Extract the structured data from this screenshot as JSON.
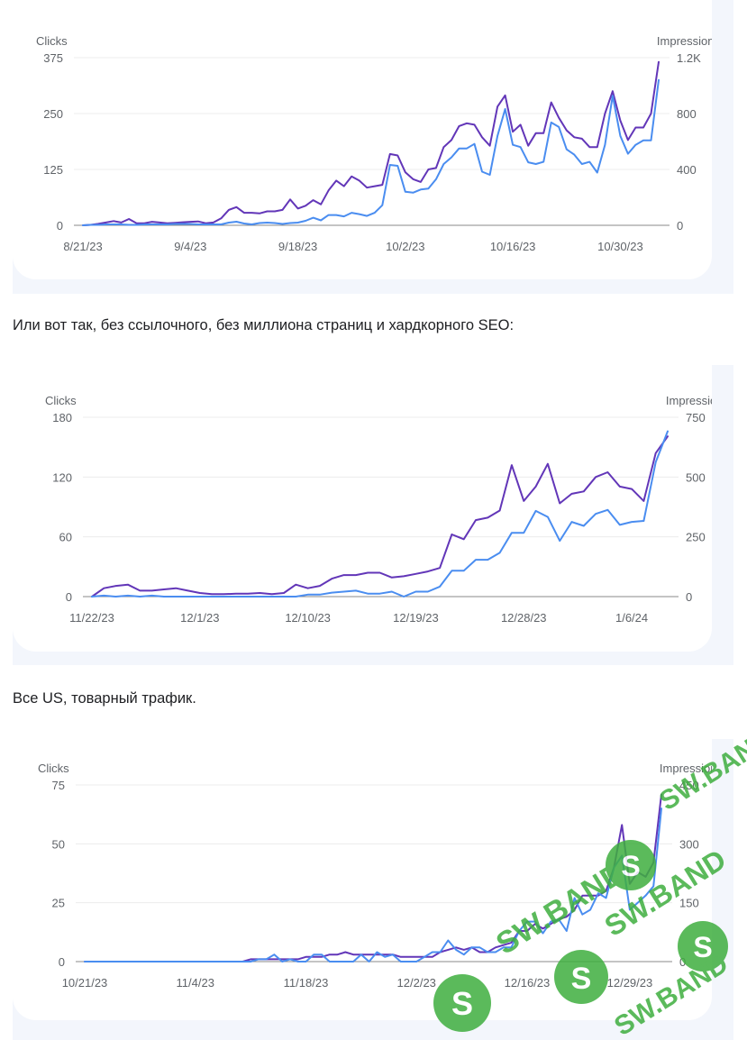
{
  "colors": {
    "clicks": "#4a8df0",
    "impressions": "#6236b8",
    "panel": "#f3f6fc",
    "watermark": "#3fae3f"
  },
  "paragraphs": [
    "Или вот так, без ссылочного, без миллиона страниц и хардкорного SEO:",
    "Все US, товарный трафик."
  ],
  "watermark": {
    "text": "SW.BAND"
  },
  "chart_data": [
    {
      "type": "line",
      "left_axis_title": "Clicks",
      "right_axis_title": "Impressions",
      "left_ticks": [
        "0",
        "125",
        "250",
        "375"
      ],
      "right_ticks": [
        "0",
        "400",
        "800",
        "1.2K"
      ],
      "ylim_left": [
        0,
        375
      ],
      "ylim_right": [
        0,
        1200
      ],
      "x_ticks": [
        "8/21/23",
        "9/4/23",
        "9/18/23",
        "10/2/23",
        "10/16/23",
        "10/30/23"
      ],
      "x_tick_index": [
        0,
        14,
        28,
        42,
        56,
        70
      ],
      "series": [
        {
          "name": "Clicks",
          "axis": "left",
          "values": [
            0,
            1,
            1,
            2,
            2,
            2,
            1,
            1,
            2,
            2,
            2,
            2,
            3,
            3,
            3,
            2,
            2,
            2,
            2,
            6,
            8,
            4,
            2,
            5,
            6,
            5,
            3,
            5,
            6,
            10,
            17,
            11,
            23,
            23,
            20,
            28,
            25,
            21,
            28,
            45,
            135,
            133,
            75,
            73,
            80,
            82,
            103,
            137,
            152,
            172,
            172,
            182,
            120,
            113,
            200,
            260,
            180,
            175,
            141,
            137,
            142,
            230,
            220,
            170,
            158,
            137,
            142,
            118,
            180,
            290,
            200,
            160,
            180,
            190,
            190,
            325
          ]
        },
        {
          "name": "Impressions",
          "axis": "right",
          "values": [
            0,
            3,
            10,
            20,
            30,
            20,
            45,
            15,
            15,
            25,
            20,
            15,
            18,
            22,
            25,
            28,
            15,
            20,
            50,
            110,
            130,
            90,
            90,
            85,
            100,
            100,
            110,
            185,
            120,
            140,
            180,
            150,
            250,
            320,
            280,
            350,
            320,
            270,
            280,
            290,
            510,
            500,
            380,
            330,
            310,
            400,
            410,
            560,
            610,
            710,
            730,
            720,
            630,
            570,
            850,
            930,
            670,
            720,
            570,
            660,
            660,
            880,
            770,
            680,
            630,
            620,
            560,
            560,
            800,
            960,
            750,
            610,
            700,
            700,
            800,
            1170
          ]
        }
      ]
    },
    {
      "type": "line",
      "left_axis_title": "Clicks",
      "right_axis_title": "Impressions",
      "left_ticks": [
        "0",
        "60",
        "120",
        "180"
      ],
      "right_ticks": [
        "0",
        "250",
        "500",
        "750"
      ],
      "ylim_left": [
        0,
        180
      ],
      "ylim_right": [
        0,
        750
      ],
      "x_ticks": [
        "11/22/23",
        "12/1/23",
        "12/10/23",
        "12/19/23",
        "12/28/23",
        "1/6/24"
      ],
      "x_tick_index": [
        0,
        9,
        18,
        27,
        36,
        45
      ],
      "series": [
        {
          "name": "Clicks",
          "axis": "left",
          "values": [
            0,
            1,
            0,
            1,
            0,
            1,
            0,
            0,
            0,
            0,
            0,
            0,
            0,
            0,
            0,
            0,
            0,
            0,
            2,
            2,
            4,
            5,
            6,
            3,
            3,
            5,
            0,
            5,
            5,
            10,
            26,
            26,
            37,
            37,
            44,
            64,
            64,
            86,
            80,
            56,
            75,
            71,
            83,
            87,
            72,
            75,
            76,
            135,
            166
          ]
        },
        {
          "name": "Impressions",
          "axis": "right",
          "values": [
            0,
            35,
            45,
            50,
            25,
            25,
            30,
            35,
            25,
            15,
            10,
            10,
            12,
            12,
            15,
            10,
            15,
            50,
            35,
            45,
            75,
            90,
            90,
            100,
            100,
            80,
            85,
            95,
            105,
            120,
            260,
            240,
            320,
            330,
            360,
            550,
            400,
            460,
            555,
            390,
            430,
            440,
            500,
            520,
            460,
            450,
            400,
            600,
            670
          ]
        }
      ]
    },
    {
      "type": "line",
      "left_axis_title": "Clicks",
      "right_axis_title": "Impressions",
      "left_ticks": [
        "0",
        "25",
        "50",
        "75"
      ],
      "right_ticks": [
        "0",
        "150",
        "300",
        "450"
      ],
      "ylim_left": [
        0,
        75
      ],
      "ylim_right": [
        0,
        450
      ],
      "x_ticks": [
        "10/21/23",
        "11/4/23",
        "11/18/23",
        "12/2/23",
        "12/16/23",
        "12/29/23"
      ],
      "x_tick_index": [
        0,
        14,
        28,
        42,
        56,
        69
      ],
      "series": [
        {
          "name": "Clicks",
          "axis": "left",
          "values": [
            0,
            0,
            0,
            0,
            0,
            0,
            0,
            0,
            0,
            0,
            0,
            0,
            0,
            0,
            0,
            0,
            0,
            0,
            0,
            0,
            0,
            0,
            1,
            1,
            3,
            0,
            1,
            0,
            0,
            3,
            3,
            0,
            0,
            0,
            0,
            3,
            0,
            4,
            2,
            3,
            0,
            0,
            0,
            2,
            4,
            4,
            9,
            5,
            3,
            6,
            6,
            4,
            4,
            6,
            6,
            13,
            17,
            17,
            12,
            17,
            18,
            13,
            27,
            20,
            22,
            29,
            27,
            40,
            45,
            22,
            25,
            28,
            32,
            65
          ]
        },
        {
          "name": "Impressions",
          "axis": "right",
          "values": [
            0,
            0,
            0,
            0,
            0,
            0,
            0,
            0,
            0,
            0,
            0,
            0,
            0,
            0,
            0,
            0,
            0,
            0,
            0,
            0,
            0,
            6,
            6,
            6,
            6,
            6,
            6,
            6,
            12,
            12,
            12,
            18,
            18,
            24,
            18,
            18,
            18,
            18,
            18,
            18,
            12,
            12,
            12,
            12,
            12,
            24,
            30,
            36,
            30,
            36,
            24,
            24,
            36,
            42,
            48,
            78,
            78,
            96,
            84,
            96,
            108,
            114,
            132,
            168,
            168,
            168,
            180,
            240,
            348,
            198,
            228,
            216,
            252,
            426
          ]
        }
      ]
    }
  ]
}
